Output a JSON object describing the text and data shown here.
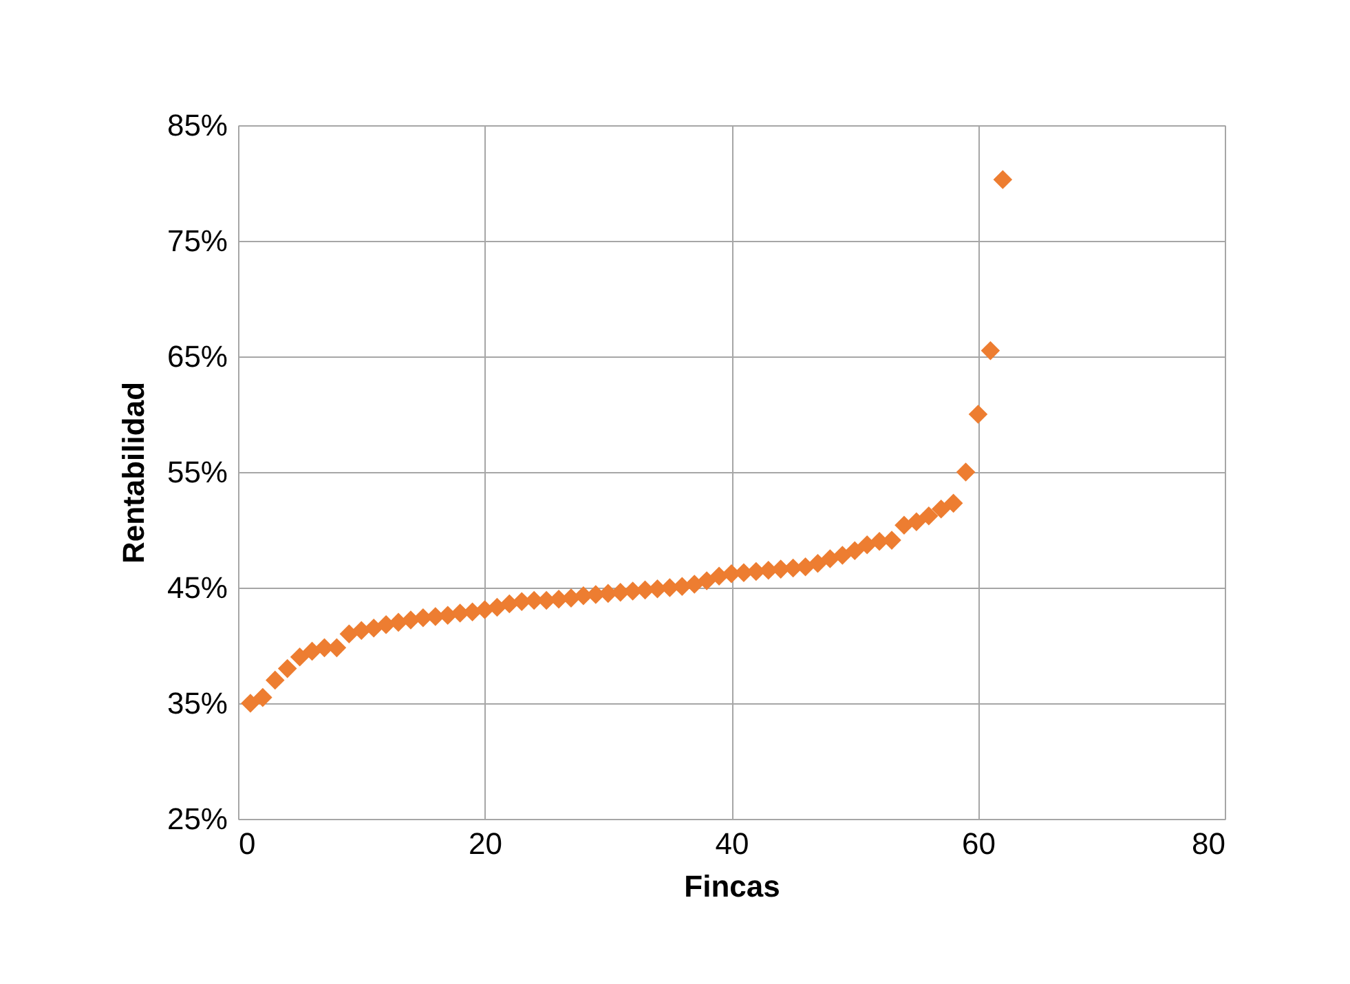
{
  "chart_data": {
    "type": "scatter",
    "xlabel": "Fincas",
    "ylabel": "Rentabilidad",
    "marker": "diamond",
    "grid": true,
    "x": [
      1,
      2,
      3,
      4,
      5,
      6,
      7,
      8,
      9,
      10,
      11,
      12,
      13,
      14,
      15,
      16,
      17,
      18,
      19,
      20,
      21,
      22,
      23,
      24,
      25,
      26,
      27,
      28,
      29,
      30,
      31,
      32,
      33,
      34,
      35,
      36,
      37,
      38,
      39,
      40,
      41,
      42,
      43,
      44,
      45,
      46,
      47,
      48,
      49,
      50,
      51,
      52,
      53,
      54,
      55,
      56,
      57,
      58,
      59,
      60,
      61,
      62
    ],
    "series": [
      {
        "color": "#ed7d31",
        "values": [
          35.0,
          35.5,
          37.0,
          38.0,
          39.0,
          39.5,
          39.8,
          39.8,
          41.0,
          41.3,
          41.5,
          41.8,
          42.0,
          42.2,
          42.4,
          42.5,
          42.6,
          42.8,
          42.9,
          43.1,
          43.3,
          43.6,
          43.8,
          43.9,
          43.9,
          44.0,
          44.1,
          44.3,
          44.4,
          44.5,
          44.6,
          44.7,
          44.8,
          44.9,
          45.0,
          45.1,
          45.3,
          45.6,
          46.0,
          46.2,
          46.3,
          46.4,
          46.5,
          46.6,
          46.7,
          46.8,
          47.1,
          47.5,
          47.8,
          48.2,
          48.7,
          49.0,
          49.1,
          50.4,
          50.7,
          51.2,
          51.8,
          52.3,
          55.0,
          60.0,
          65.5,
          80.3
        ]
      }
    ],
    "xlim": [
      0,
      80
    ],
    "xticks": [
      0,
      20,
      40,
      60,
      80
    ],
    "ylim": [
      25,
      85
    ],
    "yticks": [
      {
        "value": 25,
        "label": "25%"
      },
      {
        "value": 35,
        "label": "35%"
      },
      {
        "value": 45,
        "label": "45%"
      },
      {
        "value": 55,
        "label": "55%"
      },
      {
        "value": 65,
        "label": "65%"
      },
      {
        "value": 75,
        "label": "75%"
      },
      {
        "value": 85,
        "label": "85%"
      }
    ]
  }
}
